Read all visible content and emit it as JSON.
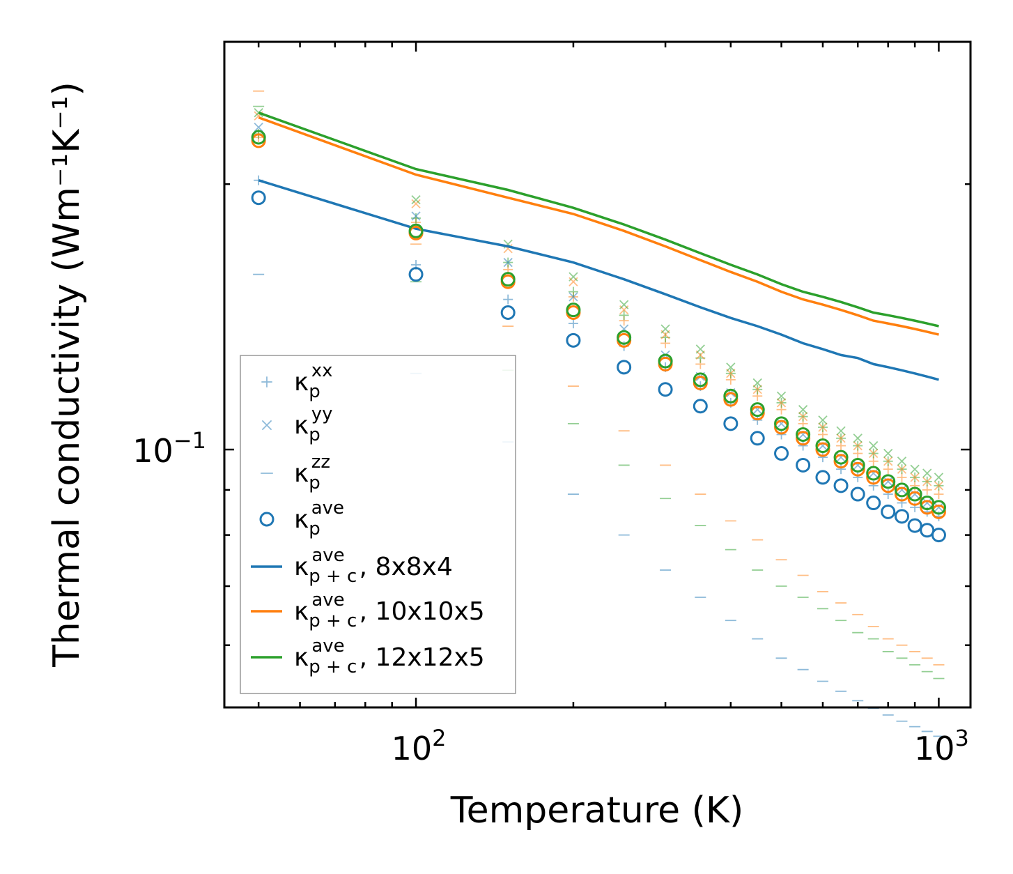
{
  "chart_data": {
    "type": "scatter",
    "title": "",
    "xlabel": "Temperature (K)",
    "ylabel": "Thermal conductivity (Wm⁻¹K⁻¹)",
    "xscale": "log",
    "yscale": "log",
    "xlim": [
      43,
      1150
    ],
    "ylim": [
      0.051,
      0.29
    ],
    "x_ticks": [
      {
        "value": 100,
        "base": "10",
        "exp": "2"
      },
      {
        "value": 1000,
        "base": "10",
        "exp": "3"
      }
    ],
    "y_ticks": [
      {
        "value": 0.1,
        "base": "10",
        "exp": "−1"
      }
    ],
    "legend_position": "lower-left",
    "x": [
      50,
      100,
      150,
      200,
      250,
      300,
      350,
      400,
      450,
      500,
      550,
      600,
      650,
      700,
      750,
      800,
      850,
      900,
      950,
      1000
    ],
    "series": [
      {
        "name": "κp^xx 8x8x4",
        "kind": "plus",
        "color": "#1f77b4",
        "values": [
          0.202,
          0.162,
          0.148,
          0.139,
          0.131,
          0.124,
          0.118,
          0.113,
          0.108,
          0.104,
          0.101,
          0.098,
          0.095,
          0.093,
          0.091,
          0.089,
          0.087,
          0.086,
          0.085,
          0.084
        ]
      },
      {
        "name": "κp^xx 10x10x5",
        "kind": "plus",
        "color": "#ff7f0e",
        "values": [
          0.226,
          0.181,
          0.16,
          0.149,
          0.14,
          0.132,
          0.125,
          0.12,
          0.115,
          0.111,
          0.107,
          0.104,
          0.101,
          0.099,
          0.097,
          0.095,
          0.093,
          0.091,
          0.09,
          0.089
        ]
      },
      {
        "name": "κp^xx 12x12x5",
        "kind": "plus",
        "color": "#2ca02c",
        "values": [
          0.228,
          0.183,
          0.163,
          0.151,
          0.142,
          0.134,
          0.127,
          0.122,
          0.117,
          0.113,
          0.109,
          0.106,
          0.103,
          0.101,
          0.099,
          0.097,
          0.095,
          0.093,
          0.092,
          0.091
        ]
      },
      {
        "name": "κp^yy 8x8x4",
        "kind": "cross",
        "color": "#1f77b4",
        "values": [
          0.232,
          0.184,
          0.163,
          0.149,
          0.137,
          0.128,
          0.121,
          0.116,
          0.111,
          0.107,
          0.104,
          0.101,
          0.098,
          0.096,
          0.094,
          0.092,
          0.09,
          0.089,
          0.087,
          0.086
        ]
      },
      {
        "name": "κp^yy 10x10x5",
        "kind": "cross",
        "color": "#ff7f0e",
        "values": [
          0.239,
          0.19,
          0.169,
          0.155,
          0.144,
          0.135,
          0.128,
          0.122,
          0.117,
          0.113,
          0.109,
          0.106,
          0.103,
          0.101,
          0.099,
          0.097,
          0.095,
          0.093,
          0.092,
          0.091
        ]
      },
      {
        "name": "κp^yy 12x12x5",
        "kind": "cross",
        "color": "#2ca02c",
        "values": [
          0.241,
          0.192,
          0.171,
          0.157,
          0.146,
          0.137,
          0.13,
          0.124,
          0.119,
          0.115,
          0.111,
          0.108,
          0.105,
          0.103,
          0.101,
          0.099,
          0.097,
          0.095,
          0.094,
          0.093
        ]
      },
      {
        "name": "κp^zz 8x8x4",
        "kind": "dash",
        "color": "#1f77b4",
        "values": [
          0.158,
          0.122,
          0.102,
          0.089,
          0.08,
          0.073,
          0.068,
          0.064,
          0.061,
          0.058,
          0.0563,
          0.0546,
          0.0532,
          0.0519,
          0.0509,
          0.05,
          0.0492,
          0.0485,
          0.0479,
          0.0473
        ]
      },
      {
        "name": "κp^zz 10x10x5",
        "kind": "dash",
        "color": "#ff7f0e",
        "values": [
          0.255,
          0.171,
          0.138,
          0.118,
          0.105,
          0.096,
          0.089,
          0.083,
          0.079,
          0.075,
          0.072,
          0.069,
          0.067,
          0.065,
          0.063,
          0.061,
          0.06,
          0.059,
          0.058,
          0.057
        ]
      },
      {
        "name": "κp^zz 12x12x5",
        "kind": "dash",
        "color": "#2ca02c",
        "values": [
          0.245,
          0.155,
          0.123,
          0.107,
          0.096,
          0.088,
          0.082,
          0.077,
          0.073,
          0.07,
          0.068,
          0.066,
          0.064,
          0.062,
          0.061,
          0.059,
          0.058,
          0.057,
          0.056,
          0.055
        ]
      },
      {
        "name": "κp^ave 8x8x4",
        "kind": "circle",
        "color": "#1f77b4",
        "values": [
          0.193,
          0.158,
          0.143,
          0.133,
          0.124,
          0.117,
          0.112,
          0.107,
          0.103,
          0.099,
          0.096,
          0.093,
          0.091,
          0.089,
          0.087,
          0.085,
          0.084,
          0.082,
          0.081,
          0.08
        ]
      },
      {
        "name": "κp^ave 10x10x5",
        "kind": "circle",
        "color": "#ff7f0e",
        "values": [
          0.224,
          0.176,
          0.155,
          0.143,
          0.133,
          0.125,
          0.119,
          0.114,
          0.11,
          0.106,
          0.103,
          0.1,
          0.097,
          0.095,
          0.093,
          0.091,
          0.089,
          0.088,
          0.086,
          0.085
        ]
      },
      {
        "name": "κp^ave 12x12x5",
        "kind": "circle",
        "color": "#2ca02c",
        "values": [
          0.226,
          0.177,
          0.156,
          0.144,
          0.134,
          0.126,
          0.12,
          0.115,
          0.111,
          0.107,
          0.104,
          0.101,
          0.098,
          0.096,
          0.094,
          0.092,
          0.09,
          0.089,
          0.087,
          0.086
        ]
      },
      {
        "name": "κp+c^ave, 8x8x4",
        "kind": "line",
        "color": "#1f77b4",
        "values": [
          0.202,
          0.178,
          0.17,
          0.163,
          0.156,
          0.15,
          0.145,
          0.141,
          0.138,
          0.135,
          0.132,
          0.13,
          0.128,
          0.127,
          0.125,
          0.124,
          0.123,
          0.122,
          0.121,
          0.12
        ]
      },
      {
        "name": "κp+c^ave, 10x10x5",
        "kind": "line",
        "color": "#ff7f0e",
        "values": [
          0.238,
          0.205,
          0.193,
          0.185,
          0.177,
          0.17,
          0.164,
          0.159,
          0.155,
          0.151,
          0.148,
          0.146,
          0.144,
          0.142,
          0.14,
          0.139,
          0.138,
          0.137,
          0.136,
          0.135
        ]
      },
      {
        "name": "κp+c^ave, 12x12x5",
        "kind": "line",
        "color": "#2ca02c",
        "values": [
          0.241,
          0.208,
          0.197,
          0.188,
          0.18,
          0.173,
          0.167,
          0.162,
          0.158,
          0.154,
          0.151,
          0.149,
          0.147,
          0.145,
          0.143,
          0.142,
          0.141,
          0.14,
          0.139,
          0.138
        ]
      }
    ],
    "legend": [
      {
        "kind": "plus",
        "color": "#1f77b4",
        "main": "κ",
        "sub": "p",
        "sup": "xx",
        "suffix": ""
      },
      {
        "kind": "cross",
        "color": "#1f77b4",
        "main": "κ",
        "sub": "p",
        "sup": "yy",
        "suffix": ""
      },
      {
        "kind": "dash",
        "color": "#1f77b4",
        "main": "κ",
        "sub": "p",
        "sup": "zz",
        "suffix": ""
      },
      {
        "kind": "circle",
        "color": "#1f77b4",
        "main": "κ",
        "sub": "p",
        "sup": "ave",
        "suffix": ""
      },
      {
        "kind": "line",
        "color": "#1f77b4",
        "main": "κ",
        "sub": "p + c",
        "sup": "ave",
        "suffix": ", 8x8x4"
      },
      {
        "kind": "line",
        "color": "#ff7f0e",
        "main": "κ",
        "sub": "p + c",
        "sup": "ave",
        "suffix": ", 10x10x5"
      },
      {
        "kind": "line",
        "color": "#2ca02c",
        "main": "κ",
        "sub": "p + c",
        "sup": "ave",
        "suffix": ", 12x12x5"
      }
    ]
  }
}
